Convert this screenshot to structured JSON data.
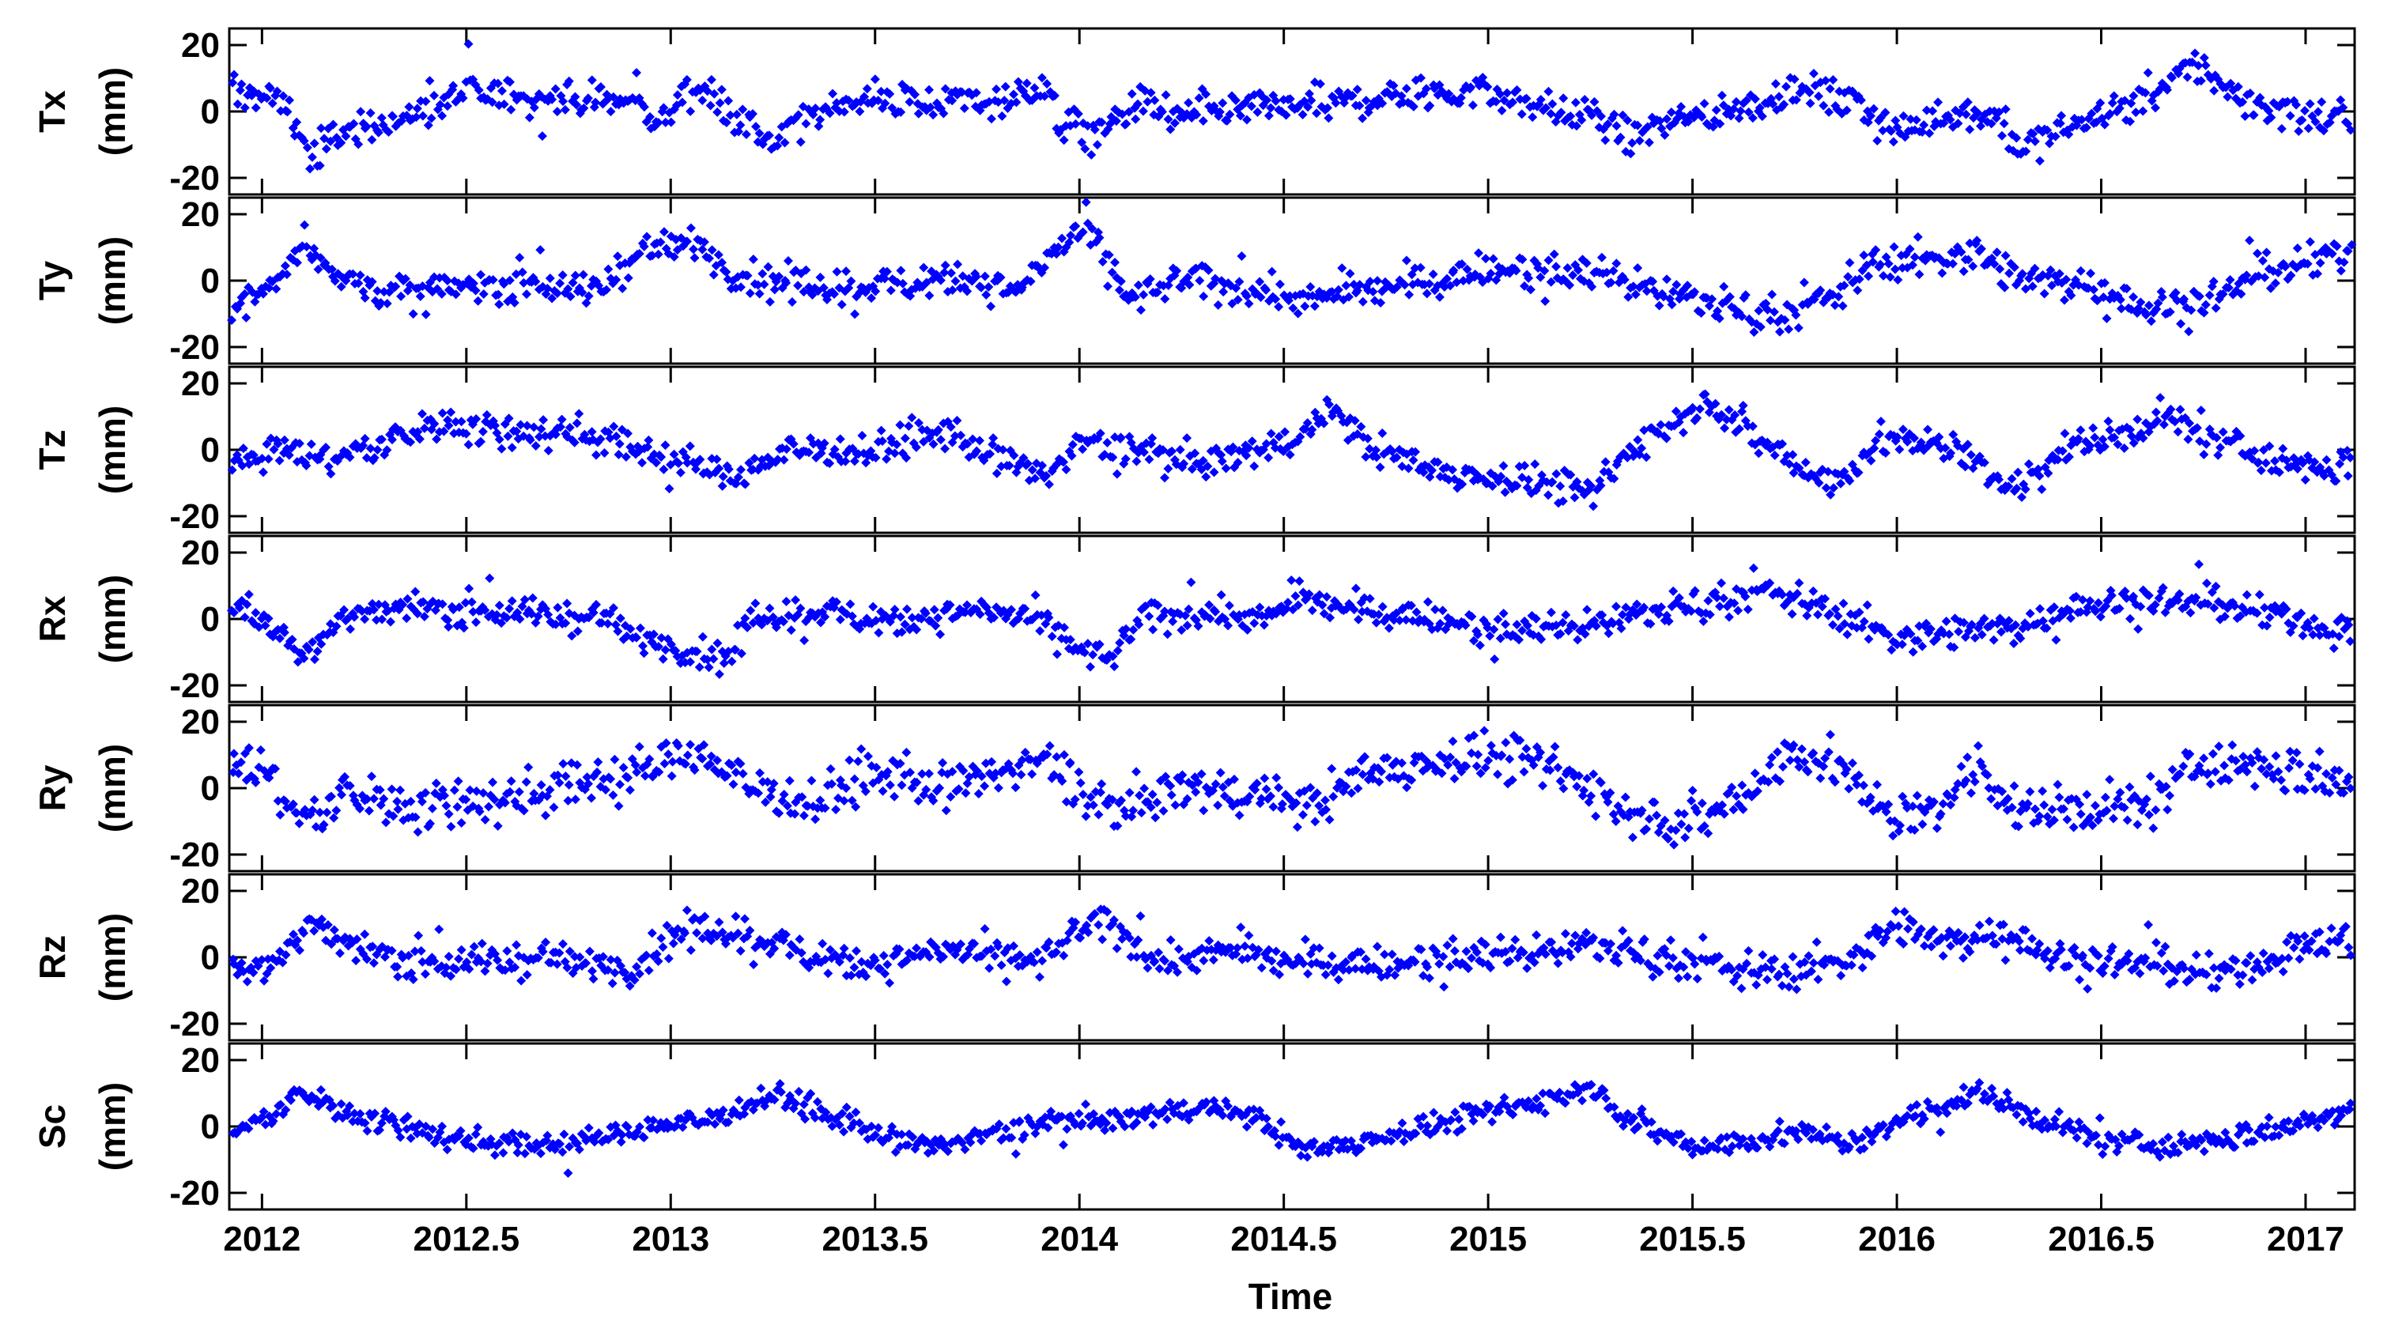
{
  "chart_data": {
    "type": "scatter",
    "xlabel": "Time",
    "xlim": [
      2011.92,
      2017.12
    ],
    "xticks": [
      2012,
      2012.5,
      2013,
      2013.5,
      2014,
      2014.5,
      2015,
      2015.5,
      2016,
      2016.5,
      2017
    ],
    "xtick_labels": [
      "2012",
      "2012.5",
      "2013",
      "2013.5",
      "2014",
      "2014.5",
      "2015",
      "2015.5",
      "2016",
      "2016.5",
      "2017"
    ],
    "marker_color": "#0000FF",
    "marker": "diamond",
    "grid": false,
    "panels": [
      {
        "name": "Tx",
        "unit": "(mm)",
        "ylim": [
          -25,
          25
        ],
        "yticks": [
          -20,
          0,
          20
        ],
        "ytick_labels": [
          "-20",
          "0",
          "20"
        ],
        "trend": [
          [
            2011.92,
            6
          ],
          [
            2012.0,
            5
          ],
          [
            2012.06,
            2
          ],
          [
            2012.12,
            -14
          ],
          [
            2012.2,
            -6
          ],
          [
            2012.35,
            -2
          ],
          [
            2012.5,
            5
          ],
          [
            2012.65,
            5
          ],
          [
            2012.8,
            3
          ],
          [
            2012.92,
            3
          ],
          [
            2012.97,
            -4
          ],
          [
            2013.05,
            8
          ],
          [
            2013.12,
            3
          ],
          [
            2013.25,
            -10
          ],
          [
            2013.4,
            3
          ],
          [
            2013.6,
            3
          ],
          [
            2013.8,
            3
          ],
          [
            2013.92,
            8
          ],
          [
            2013.95,
            -4
          ],
          [
            2014.05,
            -6
          ],
          [
            2014.15,
            2
          ],
          [
            2014.25,
            -2
          ],
          [
            2014.4,
            0
          ],
          [
            2014.6,
            2
          ],
          [
            2014.8,
            5
          ],
          [
            2015.0,
            6
          ],
          [
            2015.1,
            2
          ],
          [
            2015.2,
            0
          ],
          [
            2015.3,
            -4
          ],
          [
            2015.35,
            -8
          ],
          [
            2015.45,
            -2
          ],
          [
            2015.6,
            0
          ],
          [
            2015.75,
            7
          ],
          [
            2015.88,
            3
          ],
          [
            2016.0,
            -6
          ],
          [
            2016.15,
            0
          ],
          [
            2016.25,
            -2
          ],
          [
            2016.3,
            -12
          ],
          [
            2016.4,
            -6
          ],
          [
            2016.5,
            0
          ],
          [
            2016.6,
            2
          ],
          [
            2016.72,
            14
          ],
          [
            2016.85,
            3
          ],
          [
            2017.05,
            -3
          ],
          [
            2017.12,
            -2
          ]
        ],
        "noise": 4.5,
        "density": 880
      },
      {
        "name": "Ty",
        "unit": "(mm)",
        "ylim": [
          -25,
          25
        ],
        "yticks": [
          -20,
          0,
          20
        ],
        "ytick_labels": [
          "-20",
          "0",
          "20"
        ],
        "trend": [
          [
            2011.92,
            -8
          ],
          [
            2012.02,
            -3
          ],
          [
            2012.1,
            12
          ],
          [
            2012.2,
            0
          ],
          [
            2012.35,
            -4
          ],
          [
            2012.5,
            -2
          ],
          [
            2012.65,
            0
          ],
          [
            2012.8,
            -4
          ],
          [
            2012.92,
            8
          ],
          [
            2013.05,
            12
          ],
          [
            2013.15,
            2
          ],
          [
            2013.3,
            -2
          ],
          [
            2013.5,
            -2
          ],
          [
            2013.7,
            2
          ],
          [
            2013.85,
            -4
          ],
          [
            2013.95,
            10
          ],
          [
            2014.02,
            16
          ],
          [
            2014.12,
            -6
          ],
          [
            2014.25,
            0
          ],
          [
            2014.4,
            -2
          ],
          [
            2014.55,
            -6
          ],
          [
            2014.75,
            -2
          ],
          [
            2014.9,
            0
          ],
          [
            2015.0,
            4
          ],
          [
            2015.15,
            2
          ],
          [
            2015.3,
            2
          ],
          [
            2015.45,
            -4
          ],
          [
            2015.6,
            -8
          ],
          [
            2015.75,
            -10
          ],
          [
            2015.85,
            -4
          ],
          [
            2015.95,
            6
          ],
          [
            2016.05,
            6
          ],
          [
            2016.2,
            8
          ],
          [
            2016.3,
            0
          ],
          [
            2016.45,
            0
          ],
          [
            2016.6,
            -8
          ],
          [
            2016.75,
            -6
          ],
          [
            2016.9,
            2
          ],
          [
            2017.0,
            5
          ],
          [
            2017.12,
            8
          ]
        ],
        "noise": 4.5,
        "density": 880
      },
      {
        "name": "Tz",
        "unit": "(mm)",
        "ylim": [
          -25,
          25
        ],
        "yticks": [
          -20,
          0,
          20
        ],
        "ytick_labels": [
          "-20",
          "0",
          "20"
        ],
        "trend": [
          [
            2011.92,
            -2
          ],
          [
            2012.05,
            0
          ],
          [
            2012.15,
            -3
          ],
          [
            2012.3,
            2
          ],
          [
            2012.45,
            8
          ],
          [
            2012.6,
            5
          ],
          [
            2012.75,
            6
          ],
          [
            2012.92,
            0
          ],
          [
            2013.05,
            -4
          ],
          [
            2013.15,
            -8
          ],
          [
            2013.3,
            0
          ],
          [
            2013.5,
            0
          ],
          [
            2013.65,
            5
          ],
          [
            2013.8,
            -2
          ],
          [
            2013.92,
            -8
          ],
          [
            2014.0,
            2
          ],
          [
            2014.15,
            0
          ],
          [
            2014.3,
            -4
          ],
          [
            2014.45,
            0
          ],
          [
            2014.55,
            5
          ],
          [
            2014.62,
            12
          ],
          [
            2014.7,
            2
          ],
          [
            2014.85,
            -6
          ],
          [
            2015.0,
            -8
          ],
          [
            2015.15,
            -10
          ],
          [
            2015.25,
            -14
          ],
          [
            2015.35,
            0
          ],
          [
            2015.45,
            8
          ],
          [
            2015.55,
            15
          ],
          [
            2015.65,
            4
          ],
          [
            2015.78,
            -6
          ],
          [
            2015.85,
            -10
          ],
          [
            2015.95,
            2
          ],
          [
            2016.1,
            2
          ],
          [
            2016.2,
            -4
          ],
          [
            2016.28,
            -12
          ],
          [
            2016.4,
            0
          ],
          [
            2016.55,
            4
          ],
          [
            2016.65,
            10
          ],
          [
            2016.8,
            2
          ],
          [
            2016.95,
            -4
          ],
          [
            2017.05,
            -6
          ],
          [
            2017.12,
            -4
          ]
        ],
        "noise": 4.2,
        "density": 880
      },
      {
        "name": "Rx",
        "unit": "(mm)",
        "ylim": [
          -25,
          25
        ],
        "yticks": [
          -20,
          0,
          20
        ],
        "ytick_labels": [
          "-20",
          "0",
          "20"
        ],
        "trend": [
          [
            2011.92,
            6
          ],
          [
            2012.0,
            0
          ],
          [
            2012.1,
            -10
          ],
          [
            2012.2,
            0
          ],
          [
            2012.35,
            4
          ],
          [
            2012.6,
            2
          ],
          [
            2012.85,
            0
          ],
          [
            2012.92,
            -6
          ],
          [
            2013.05,
            -10
          ],
          [
            2013.15,
            -12
          ],
          [
            2013.2,
            0
          ],
          [
            2013.35,
            2
          ],
          [
            2013.55,
            0
          ],
          [
            2013.75,
            2
          ],
          [
            2013.9,
            0
          ],
          [
            2014.0,
            -10
          ],
          [
            2014.08,
            -12
          ],
          [
            2014.15,
            0
          ],
          [
            2014.3,
            2
          ],
          [
            2014.45,
            0
          ],
          [
            2014.55,
            6
          ],
          [
            2014.7,
            2
          ],
          [
            2014.9,
            0
          ],
          [
            2015.0,
            -4
          ],
          [
            2015.2,
            -2
          ],
          [
            2015.4,
            2
          ],
          [
            2015.55,
            6
          ],
          [
            2015.7,
            8
          ],
          [
            2015.85,
            2
          ],
          [
            2016.0,
            -6
          ],
          [
            2016.15,
            -4
          ],
          [
            2016.3,
            -2
          ],
          [
            2016.45,
            4
          ],
          [
            2016.6,
            6
          ],
          [
            2016.8,
            4
          ],
          [
            2016.95,
            0
          ],
          [
            2017.12,
            -4
          ]
        ],
        "noise": 4.0,
        "density": 880
      },
      {
        "name": "Ry",
        "unit": "(mm)",
        "ylim": [
          -25,
          25
        ],
        "yticks": [
          -20,
          0,
          20
        ],
        "ytick_labels": [
          "-20",
          "0",
          "20"
        ],
        "trend": [
          [
            2011.92,
            6
          ],
          [
            2012.0,
            6
          ],
          [
            2012.1,
            -10
          ],
          [
            2012.2,
            -2
          ],
          [
            2012.35,
            -6
          ],
          [
            2012.5,
            -4
          ],
          [
            2012.65,
            -2
          ],
          [
            2012.8,
            2
          ],
          [
            2012.95,
            6
          ],
          [
            2013.05,
            12
          ],
          [
            2013.2,
            0
          ],
          [
            2013.35,
            -4
          ],
          [
            2013.5,
            4
          ],
          [
            2013.65,
            0
          ],
          [
            2013.85,
            6
          ],
          [
            2013.95,
            8
          ],
          [
            2014.02,
            -4
          ],
          [
            2014.1,
            -6
          ],
          [
            2014.25,
            0
          ],
          [
            2014.45,
            -2
          ],
          [
            2014.55,
            -6
          ],
          [
            2014.7,
            4
          ],
          [
            2014.85,
            8
          ],
          [
            2015.0,
            10
          ],
          [
            2015.15,
            6
          ],
          [
            2015.25,
            0
          ],
          [
            2015.35,
            -8
          ],
          [
            2015.5,
            -10
          ],
          [
            2015.6,
            -4
          ],
          [
            2015.75,
            12
          ],
          [
            2015.85,
            6
          ],
          [
            2016.0,
            -10
          ],
          [
            2016.1,
            -6
          ],
          [
            2016.2,
            8
          ],
          [
            2016.3,
            -8
          ],
          [
            2016.45,
            -6
          ],
          [
            2016.6,
            -6
          ],
          [
            2016.75,
            8
          ],
          [
            2016.9,
            6
          ],
          [
            2017.12,
            2
          ]
        ],
        "noise": 6.0,
        "density": 880
      },
      {
        "name": "Rz",
        "unit": "(mm)",
        "ylim": [
          -25,
          25
        ],
        "yticks": [
          -20,
          0,
          20
        ],
        "ytick_labels": [
          "-20",
          "0",
          "20"
        ],
        "trend": [
          [
            2011.92,
            -4
          ],
          [
            2012.05,
            0
          ],
          [
            2012.12,
            10
          ],
          [
            2012.25,
            2
          ],
          [
            2012.45,
            -2
          ],
          [
            2012.7,
            0
          ],
          [
            2012.9,
            -4
          ],
          [
            2013.0,
            6
          ],
          [
            2013.15,
            8
          ],
          [
            2013.3,
            2
          ],
          [
            2013.5,
            -2
          ],
          [
            2013.7,
            2
          ],
          [
            2013.9,
            -2
          ],
          [
            2014.0,
            8
          ],
          [
            2014.08,
            10
          ],
          [
            2014.2,
            -2
          ],
          [
            2014.35,
            2
          ],
          [
            2014.55,
            -2
          ],
          [
            2014.75,
            -2
          ],
          [
            2014.95,
            0
          ],
          [
            2015.1,
            2
          ],
          [
            2015.25,
            4
          ],
          [
            2015.45,
            0
          ],
          [
            2015.6,
            -4
          ],
          [
            2015.75,
            -4
          ],
          [
            2015.9,
            0
          ],
          [
            2016.0,
            10
          ],
          [
            2016.1,
            4
          ],
          [
            2016.25,
            8
          ],
          [
            2016.4,
            0
          ],
          [
            2016.6,
            -2
          ],
          [
            2016.8,
            -6
          ],
          [
            2016.95,
            2
          ],
          [
            2017.12,
            6
          ]
        ],
        "noise": 4.5,
        "density": 880
      },
      {
        "name": "Sc",
        "unit": "(mm)",
        "ylim": [
          -25,
          25
        ],
        "yticks": [
          -20,
          0,
          20
        ],
        "ytick_labels": [
          "-20",
          "0",
          "20"
        ],
        "trend": [
          [
            2011.92,
            -2
          ],
          [
            2012.0,
            2
          ],
          [
            2012.1,
            10
          ],
          [
            2012.2,
            4
          ],
          [
            2012.35,
            0
          ],
          [
            2012.5,
            -4
          ],
          [
            2012.65,
            -6
          ],
          [
            2012.8,
            -4
          ],
          [
            2012.95,
            0
          ],
          [
            2013.1,
            2
          ],
          [
            2013.25,
            10
          ],
          [
            2013.4,
            2
          ],
          [
            2013.55,
            -4
          ],
          [
            2013.65,
            -6
          ],
          [
            2013.8,
            -2
          ],
          [
            2013.95,
            2
          ],
          [
            2014.1,
            2
          ],
          [
            2014.3,
            6
          ],
          [
            2014.45,
            2
          ],
          [
            2014.55,
            -8
          ],
          [
            2014.7,
            -4
          ],
          [
            2014.85,
            0
          ],
          [
            2015.0,
            4
          ],
          [
            2015.15,
            8
          ],
          [
            2015.25,
            12
          ],
          [
            2015.35,
            2
          ],
          [
            2015.5,
            -6
          ],
          [
            2015.65,
            -4
          ],
          [
            2015.8,
            -2
          ],
          [
            2015.9,
            -6
          ],
          [
            2016.0,
            2
          ],
          [
            2016.2,
            10
          ],
          [
            2016.35,
            2
          ],
          [
            2016.5,
            -4
          ],
          [
            2016.65,
            -6
          ],
          [
            2016.8,
            -4
          ],
          [
            2016.95,
            0
          ],
          [
            2017.12,
            6
          ]
        ],
        "noise": 3.0,
        "density": 880
      }
    ]
  }
}
